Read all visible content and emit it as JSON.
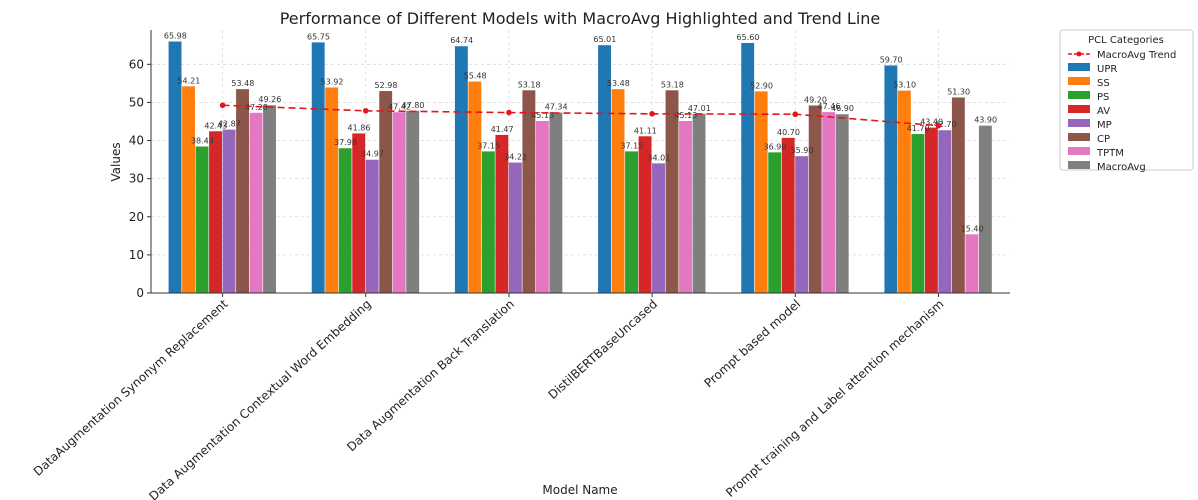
{
  "chart_data": {
    "type": "bar",
    "title": "Performance of Different Models with MacroAvg Highlighted and Trend Line",
    "xlabel": "Model Name",
    "ylabel": "Values",
    "ylim": [
      0,
      69
    ],
    "yticks": [
      0,
      10,
      20,
      30,
      40,
      50,
      60
    ],
    "grid": true,
    "legend_title": "PCL Categories",
    "legend_placement": "outside-right",
    "categories": [
      "DataAugmentation Synonym Replacement",
      "Data Augmentation Contextual Word Embedding",
      "Data Augmentation Back Translation",
      "DistilBERTBaseUncased",
      "Prompt based model",
      "Prompt training and Label attention mechanism"
    ],
    "series": [
      {
        "name": "UPR",
        "color": "#1f77b4",
        "values": [
          65.98,
          65.75,
          64.74,
          65.01,
          65.6,
          59.7
        ]
      },
      {
        "name": "SS",
        "color": "#ff7f0e",
        "values": [
          54.21,
          53.92,
          55.48,
          53.48,
          52.9,
          53.1
        ]
      },
      {
        "name": "PS",
        "color": "#2ca02c",
        "values": [
          38.43,
          37.98,
          37.15,
          37.15,
          36.9,
          41.7
        ]
      },
      {
        "name": "AV",
        "color": "#d62728",
        "values": [
          42.43,
          41.86,
          41.47,
          41.11,
          40.7,
          43.4
        ]
      },
      {
        "name": "MP",
        "color": "#9467bd",
        "values": [
          42.87,
          34.97,
          34.22,
          34.01,
          35.9,
          42.7
        ]
      },
      {
        "name": "CP",
        "color": "#8c564b",
        "values": [
          53.48,
          52.98,
          53.18,
          53.18,
          49.2,
          51.3
        ]
      },
      {
        "name": "TPTM",
        "color": "#e377c2",
        "values": [
          47.28,
          47.42,
          45.13,
          45.13,
          47.46,
          15.4
        ]
      },
      {
        "name": "MacroAvg",
        "color": "#7f7f7f",
        "values": [
          49.26,
          47.8,
          47.34,
          47.01,
          46.9,
          43.9
        ]
      }
    ],
    "trend_line": {
      "name": "MacroAvg Trend",
      "color": "#e8141c",
      "values": [
        49.26,
        47.8,
        47.34,
        47.01,
        46.9,
        43.9
      ]
    }
  }
}
